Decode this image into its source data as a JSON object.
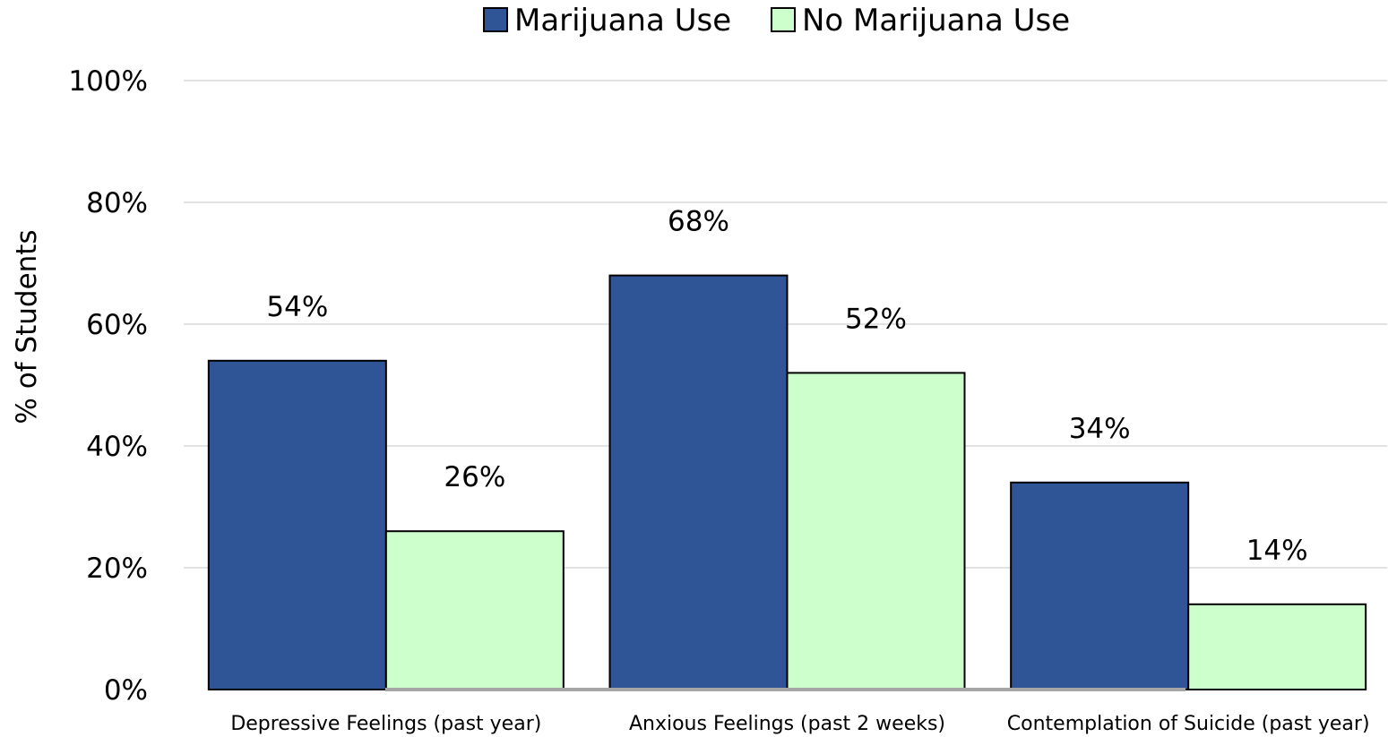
{
  "chart_data": {
    "type": "bar",
    "title": "",
    "xlabel": "",
    "ylabel": "% of Students",
    "ylim": [
      0,
      100
    ],
    "yticks": [
      0,
      20,
      40,
      60,
      80,
      100
    ],
    "ytick_suffix": "%",
    "grid": true,
    "legend_position": "top-center",
    "categories": [
      "Depressive Feelings (past year)",
      "Anxious Feelings (past 2 weeks)",
      "Contemplation of Suicide (past year)"
    ],
    "series": [
      {
        "name": "Marijuana Use",
        "color": "#2f5597",
        "values": [
          54,
          68,
          34
        ],
        "labels": [
          "54%",
          "68%",
          "34%"
        ]
      },
      {
        "name": "No Marijuana Use",
        "color": "#ccffcc",
        "values": [
          26,
          52,
          14
        ],
        "labels": [
          "26%",
          "52%",
          "14%"
        ]
      }
    ]
  }
}
